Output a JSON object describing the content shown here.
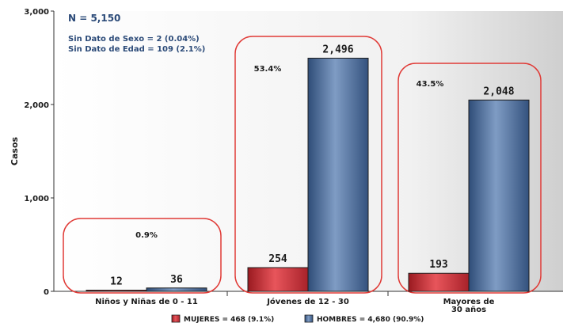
{
  "chart_data": {
    "type": "bar",
    "ylabel": "Casos",
    "ylim": [
      0,
      3000
    ],
    "yticks": [
      0,
      1000,
      2000,
      3000
    ],
    "ytick_labels": [
      "0",
      "1,000",
      "2,000",
      "3,000"
    ],
    "grid": false,
    "categories": [
      [
        "Niños y Niñas de 0 - 11"
      ],
      [
        "Jóvenes de 12 - 30"
      ],
      [
        "Mayores de",
        "30 años"
      ]
    ],
    "series": [
      {
        "name": "MUJERES = 468 (9.1%)",
        "color": "#c0272d",
        "values": [
          12,
          254,
          193
        ],
        "labels": [
          "12",
          "254",
          "193"
        ]
      },
      {
        "name": "HOMBRES = 4,680 (90.9%)",
        "color": "#4a6c9b",
        "values": [
          36,
          2496,
          2048
        ],
        "labels": [
          "36",
          "2,496",
          "2,048"
        ]
      }
    ],
    "group_percentages": [
      "0.9%",
      "53.4%",
      "43.5%"
    ],
    "annotations": {
      "total": "N = 5,150",
      "missing_sex": "Sin Dato de Sexo = 2 (0.04%)",
      "missing_age": "Sin Dato de Edad  = 109 (2.1%)"
    },
    "highlight_color": "#e03a36",
    "background_gradient": [
      "#ffffff",
      "#d4d4d4"
    ]
  }
}
